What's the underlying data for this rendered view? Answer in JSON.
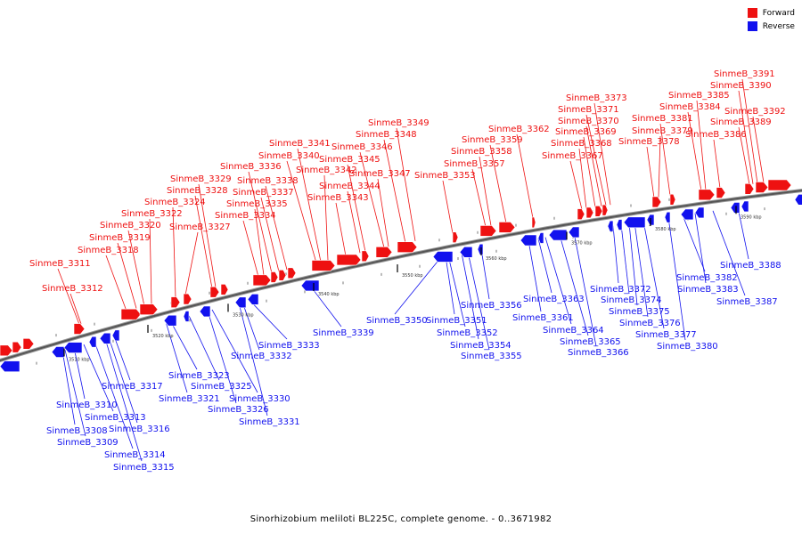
{
  "legend": {
    "forward_label": "Forward",
    "reverse_label": "Reverse",
    "forward_color": "#ee1111",
    "reverse_color": "#1111ee"
  },
  "caption": "Sinorhizobium meliloti BL225C, complete genome. - 0..3671982",
  "chart_data": {
    "type": "genome-map",
    "x_unit": "kbp",
    "ticks": [
      "3510 kbp",
      "3520 kbp",
      "3530 kbp",
      "3540 kbp",
      "3550 kbp",
      "3560 kbp",
      "3570 kbp",
      "3580 kbp",
      "3590 kbp"
    ],
    "forward_genes": [
      {
        "name": "SinmeB_3311",
        "x": 89
      },
      {
        "name": "SinmeB_3312",
        "x": 91
      },
      {
        "name": "SinmeB_3318",
        "x": 142
      },
      {
        "name": "SinmeB_3319",
        "x": 153
      },
      {
        "name": "SinmeB_3320",
        "x": 162
      },
      {
        "name": "SinmeB_3322",
        "x": 170
      },
      {
        "name": "SinmeB_3324",
        "x": 197
      },
      {
        "name": "SinmeB_3327",
        "x": 208
      },
      {
        "name": "SinmeB_3328",
        "x": 238
      },
      {
        "name": "SinmeB_3329",
        "x": 242
      },
      {
        "name": "SinmeB_3334",
        "x": 290
      },
      {
        "name": "SinmeB_3335",
        "x": 296
      },
      {
        "name": "SinmeB_3336",
        "x": 305
      },
      {
        "name": "SinmeB_3337",
        "x": 313
      },
      {
        "name": "SinmeB_3338",
        "x": 322
      },
      {
        "name": "SinmeB_3340",
        "x": 355
      },
      {
        "name": "SinmeB_3341",
        "x": 360
      },
      {
        "name": "SinmeB_3342",
        "x": 368
      },
      {
        "name": "SinmeB_3343",
        "x": 388
      },
      {
        "name": "SinmeB_3344",
        "x": 404
      },
      {
        "name": "SinmeB_3345",
        "x": 410
      },
      {
        "name": "SinmeB_3346",
        "x": 431
      },
      {
        "name": "SinmeB_3347",
        "x": 436
      },
      {
        "name": "SinmeB_3348",
        "x": 455
      },
      {
        "name": "SinmeB_3349",
        "x": 466
      },
      {
        "name": "SinmeB_3353",
        "x": 508
      },
      {
        "name": "SinmeB_3357",
        "x": 545
      },
      {
        "name": "SinmeB_3358",
        "x": 551
      },
      {
        "name": "SinmeB_3359",
        "x": 568
      },
      {
        "name": "SinmeB_3362",
        "x": 598
      },
      {
        "name": "SinmeB_3367",
        "x": 653
      },
      {
        "name": "SinmeB_3368",
        "x": 658
      },
      {
        "name": "SinmeB_3369",
        "x": 668
      },
      {
        "name": "SinmeB_3370",
        "x": 675
      },
      {
        "name": "SinmeB_3371",
        "x": 680
      },
      {
        "name": "SinmeB_3373",
        "x": 685
      },
      {
        "name": "SinmeB_3378",
        "x": 734
      },
      {
        "name": "SinmeB_3379",
        "x": 739
      },
      {
        "name": "SinmeB_3381",
        "x": 752
      },
      {
        "name": "SinmeB_3384",
        "x": 787
      },
      {
        "name": "SinmeB_3385",
        "x": 792
      },
      {
        "name": "SinmeB_3386",
        "x": 808
      },
      {
        "name": "SinmeB_3389",
        "x": 841
      },
      {
        "name": "SinmeB_3390",
        "x": 845
      },
      {
        "name": "SinmeB_3391",
        "x": 850
      },
      {
        "name": "SinmeB_3392",
        "x": 857
      }
    ],
    "reverse_genes": [
      {
        "name": "SinmeB_3308",
        "x": 70
      },
      {
        "name": "SinmeB_3309",
        "x": 73
      },
      {
        "name": "SinmeB_3310",
        "x": 83
      },
      {
        "name": "SinmeB_3313",
        "x": 94
      },
      {
        "name": "SinmeB_3314",
        "x": 106
      },
      {
        "name": "SinmeB_3315",
        "x": 118
      },
      {
        "name": "SinmeB_3316",
        "x": 122
      },
      {
        "name": "SinmeB_3317",
        "x": 128
      },
      {
        "name": "SinmeB_3321",
        "x": 186
      },
      {
        "name": "SinmeB_3323",
        "x": 191
      },
      {
        "name": "SinmeB_3325",
        "x": 212
      },
      {
        "name": "SinmeB_3326",
        "x": 233
      },
      {
        "name": "SinmeB_3330",
        "x": 238
      },
      {
        "name": "SinmeB_3331",
        "x": 268
      },
      {
        "name": "SinmeB_3332",
        "x": 272
      },
      {
        "name": "SinmeB_3333",
        "x": 280
      },
      {
        "name": "SinmeB_3339",
        "x": 348
      },
      {
        "name": "SinmeB_3350",
        "x": 495
      },
      {
        "name": "SinmeB_3351",
        "x": 500
      },
      {
        "name": "SinmeB_3352",
        "x": 503
      },
      {
        "name": "SinmeB_3354",
        "x": 518
      },
      {
        "name": "SinmeB_3355",
        "x": 525
      },
      {
        "name": "SinmeB_3356",
        "x": 540
      },
      {
        "name": "SinmeB_3361",
        "x": 593
      },
      {
        "name": "SinmeB_3363",
        "x": 604
      },
      {
        "name": "SinmeB_3364",
        "x": 612
      },
      {
        "name": "SinmeB_3365",
        "x": 628
      },
      {
        "name": "SinmeB_3366",
        "x": 644
      },
      {
        "name": "SinmeB_3372",
        "x": 688
      },
      {
        "name": "SinmeB_3374",
        "x": 697
      },
      {
        "name": "SinmeB_3375",
        "x": 706
      },
      {
        "name": "SinmeB_3376",
        "x": 712
      },
      {
        "name": "SinmeB_3377",
        "x": 722
      },
      {
        "name": "SinmeB_3380",
        "x": 750
      },
      {
        "name": "SinmeB_3382",
        "x": 766
      },
      {
        "name": "SinmeB_3383",
        "x": 780
      },
      {
        "name": "SinmeB_3387",
        "x": 800
      },
      {
        "name": "SinmeB_3388",
        "x": 828
      }
    ]
  }
}
